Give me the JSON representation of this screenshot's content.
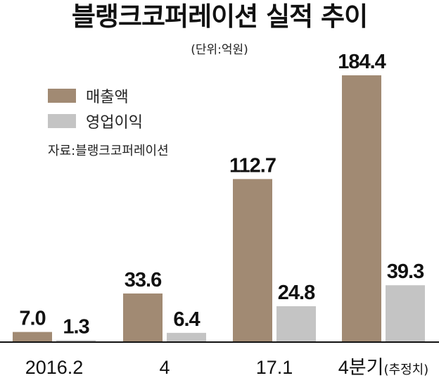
{
  "title": "블랭크코퍼레이션 실적 추이",
  "unit_note": "(단위:억원)",
  "source": "자료:블랭크코퍼레이션",
  "colors": {
    "revenue": "#a18a73",
    "operating_profit": "#c4c4c4",
    "axis": "#111111"
  },
  "chart_data": {
    "type": "bar",
    "title": "블랭크코퍼레이션 실적 추이",
    "unit": "(단위:억원)",
    "categories": [
      "2016.2",
      "4",
      "17.1",
      "4분기"
    ],
    "category_notes": [
      "",
      "",
      "",
      "(추정치)"
    ],
    "series": [
      {
        "name": "매출액",
        "values": [
          7.0,
          33.6,
          112.7,
          184.4
        ],
        "labels": [
          "7.0",
          "33.6",
          "112.7",
          "184.4"
        ]
      },
      {
        "name": "영업이익",
        "values": [
          1.3,
          6.4,
          24.8,
          39.3
        ],
        "labels": [
          "1.3",
          "6.4",
          "24.8",
          "39.3"
        ]
      }
    ],
    "ylim": [
      0,
      200
    ],
    "grid": false,
    "legend": "top-left"
  }
}
